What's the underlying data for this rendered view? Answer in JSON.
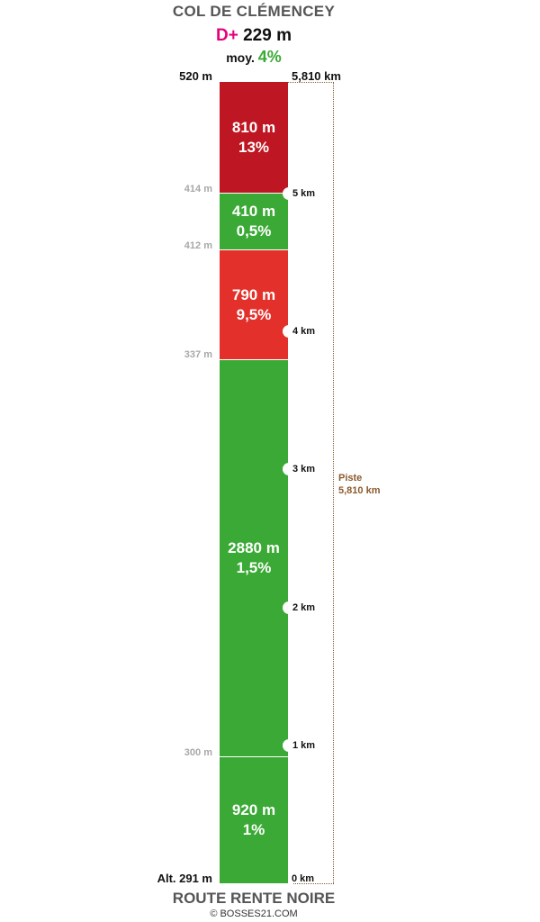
{
  "header": {
    "title": "COL DE CLÉMENCEY",
    "elevation_gain_label": "D+",
    "elevation_gain_value": "229 m",
    "average_label": "moy.",
    "average_value": "4%"
  },
  "top": {
    "altitude": "520 m",
    "distance": "5,810 km"
  },
  "segments": [
    {
      "length": "810 m",
      "grade": "13%",
      "color": "#be1622"
    },
    {
      "length": "410 m",
      "grade": "0,5%",
      "color": "#3aa935"
    },
    {
      "length": "790 m",
      "grade": "9,5%",
      "color": "#e3302a"
    },
    {
      "length": "2880 m",
      "grade": "1,5%",
      "color": "#3aa935"
    },
    {
      "length": "920 m",
      "grade": "1%",
      "color": "#3aa935"
    }
  ],
  "altitude_markers": [
    "414 m",
    "412 m",
    "337 m",
    "300 m"
  ],
  "km_markers": [
    "5 km",
    "4 km",
    "3 km",
    "2 km",
    "1 km"
  ],
  "piste": {
    "label": "Piste",
    "distance": "5,810 km"
  },
  "base": {
    "altitude": "Alt. 291 m",
    "distance": "0 km"
  },
  "footer": {
    "road": "ROUTE RENTE NOIRE",
    "credit": "© BOSSES21.COM"
  }
}
